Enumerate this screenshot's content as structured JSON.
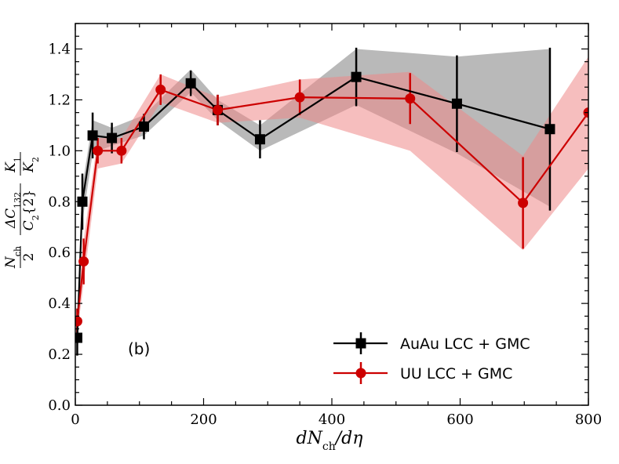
{
  "chart_data": {
    "type": "line",
    "title": "",
    "xlabel": "dN_ch/dη",
    "ylabel": "(N_ch/2)(ΔC_132/C_2{2})(K_1/K_2)",
    "xlim": [
      0,
      800
    ],
    "ylim": [
      0.0,
      1.5
    ],
    "xticks": [
      "0",
      "200",
      "400",
      "600",
      "800"
    ],
    "yticks": [
      "0.0",
      "0.2",
      "0.4",
      "0.6",
      "0.8",
      "1.0",
      "1.2",
      "1.4"
    ],
    "annotation": "(b)",
    "legend_position": "lower-right",
    "series": [
      {
        "name": "AuAu LCC + GMC",
        "color": "#000000",
        "marker": "square",
        "band_color": "#808080",
        "x": [
          3,
          11,
          27,
          57,
          107,
          180,
          222,
          288,
          438,
          595,
          740
        ],
        "y": [
          0.265,
          0.8,
          1.06,
          1.05,
          1.095,
          1.265,
          1.16,
          1.045,
          1.29,
          1.185,
          1.085
        ],
        "yerr": [
          0.07,
          0.11,
          0.09,
          0.06,
          0.05,
          0.05,
          0.06,
          0.075,
          0.115,
          0.19,
          0.32
        ],
        "band_lo": [
          0.21,
          0.72,
          0.99,
          1.02,
          1.06,
          1.23,
          1.12,
          1.0,
          1.18,
          0.99,
          0.78
        ],
        "band_hi": [
          0.32,
          0.86,
          1.12,
          1.09,
          1.14,
          1.32,
          1.2,
          1.1,
          1.4,
          1.37,
          1.4
        ]
      },
      {
        "name": "UU LCC + GMC",
        "color": "#cc0000",
        "marker": "circle",
        "band_color": "#ee8888",
        "x": [
          3,
          13,
          35,
          72,
          133,
          222,
          350,
          522,
          698,
          800
        ],
        "y": [
          0.33,
          0.565,
          1.0,
          1.0,
          1.24,
          1.16,
          1.21,
          1.205,
          0.795,
          1.15
        ],
        "yerr": [
          0.05,
          0.09,
          0.05,
          0.05,
          0.06,
          0.06,
          0.07,
          0.1,
          0.18,
          0.0
        ],
        "band_lo": [
          0.28,
          0.48,
          0.93,
          0.95,
          1.19,
          1.11,
          1.13,
          1.0,
          0.61,
          0.93
        ],
        "band_hi": [
          0.38,
          0.65,
          1.05,
          1.05,
          1.3,
          1.21,
          1.28,
          1.31,
          0.98,
          1.37
        ]
      }
    ]
  }
}
